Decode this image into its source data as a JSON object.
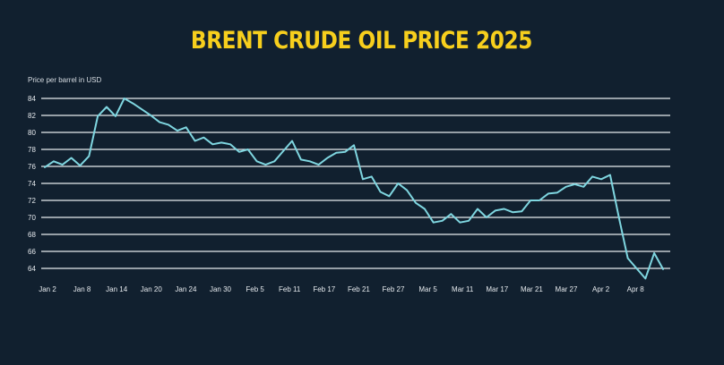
{
  "chart_data": {
    "type": "line",
    "title": "BRENT CRUDE OIL PRICE 2025",
    "ylabel": "Price per barrel in USD",
    "xlabel": "",
    "ylim": [
      62,
      85
    ],
    "yticks": [
      64,
      66,
      68,
      70,
      72,
      74,
      76,
      78,
      80,
      82,
      84
    ],
    "grid": true,
    "legend": "none",
    "colors": {
      "background": "#11202f",
      "line": "#7fd6e0",
      "grid": "#e8ecef",
      "title": "#f7cf1d"
    },
    "x_tick_labels": [
      "Jan 2",
      "Jan 8",
      "Jan 14",
      "Jan 20",
      "Jan 24",
      "Jan 30",
      "Feb 5",
      "Feb 11",
      "Feb 17",
      "Feb 21",
      "Feb 27",
      "Mar 5",
      "Mar 11",
      "Mar 17",
      "Mar 21",
      "Mar 27",
      "Apr 2",
      "Apr 8"
    ],
    "series": [
      {
        "values": [
          75.9,
          76.6,
          76.2,
          77.0,
          76.1,
          77.2,
          81.9,
          83.0,
          81.9,
          84.0,
          83.4,
          82.7,
          82.0,
          81.2,
          80.9,
          80.2,
          80.6,
          79.0,
          79.4,
          78.6,
          78.8,
          78.6,
          77.7,
          78.0,
          76.6,
          76.2,
          76.6,
          77.8,
          79.0,
          76.8,
          76.6,
          76.2,
          77.0,
          77.6,
          77.7,
          78.5,
          74.5,
          74.8,
          73.0,
          72.5,
          74.0,
          73.2,
          71.7,
          71.0,
          69.4,
          69.6,
          70.4,
          69.4,
          69.6,
          71.0,
          70.0,
          70.8,
          71.0,
          70.6,
          70.7,
          72.0,
          72.0,
          72.8,
          72.9,
          73.6,
          73.9,
          73.6,
          74.8,
          74.5,
          75.0,
          70.0,
          65.2,
          64.0,
          62.8,
          65.8,
          63.9
        ]
      }
    ]
  }
}
